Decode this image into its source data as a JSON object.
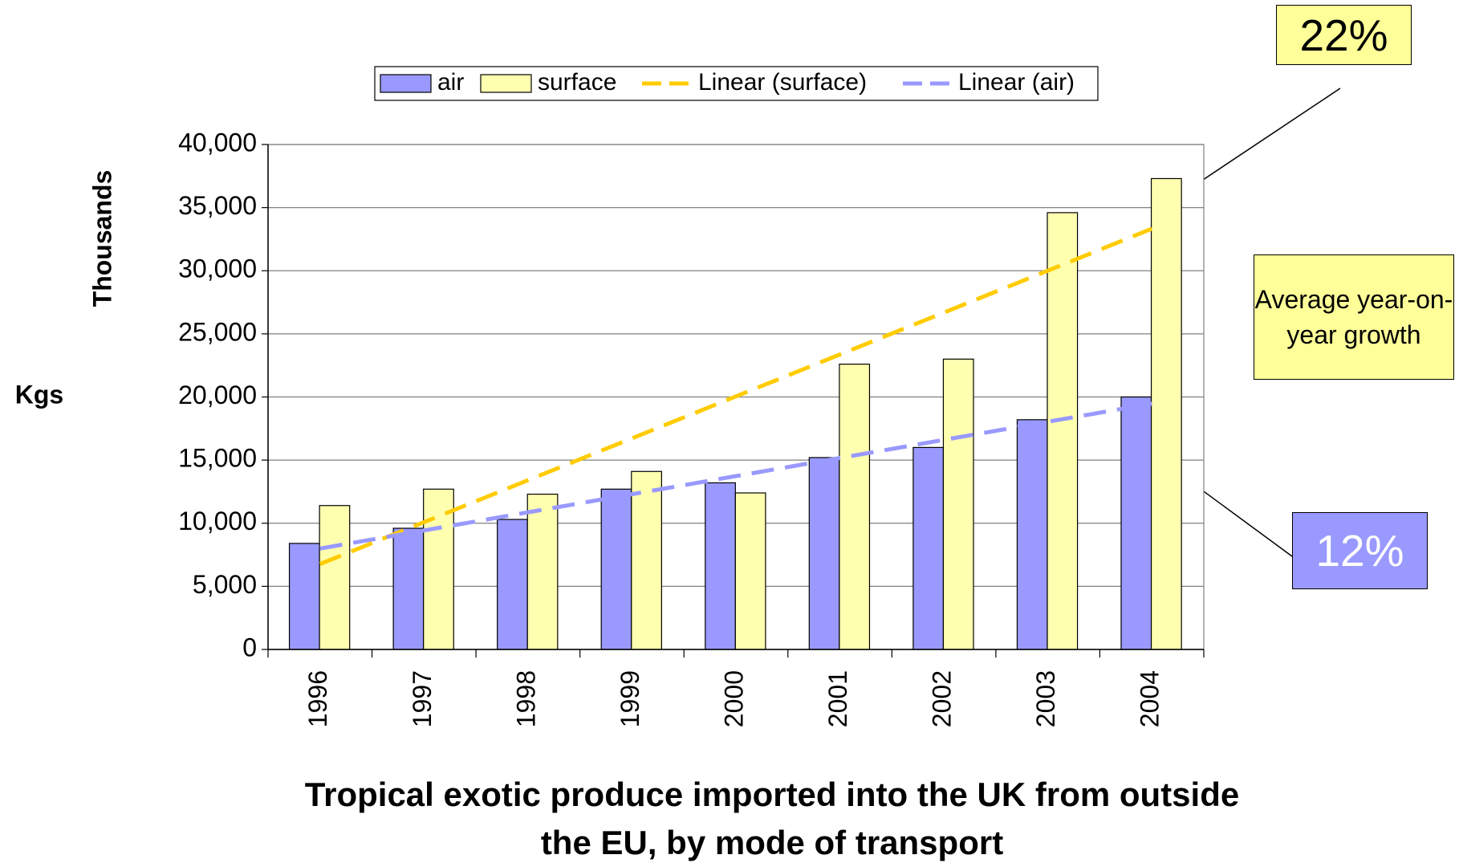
{
  "chart_data": {
    "type": "bar",
    "title": "Tropical exotic produce imported into the UK from outside the EU, by mode of transport",
    "y_label": "Thousands",
    "y_unit_label": "Kgs",
    "categories": [
      "1996",
      "1997",
      "1998",
      "1999",
      "2000",
      "2001",
      "2002",
      "2003",
      "2004"
    ],
    "series": [
      {
        "name": "air",
        "color": "#9999ff",
        "values": [
          8400,
          9600,
          10300,
          12700,
          13200,
          15200,
          16000,
          18200,
          20000
        ]
      },
      {
        "name": "surface",
        "color": "#ffffb0",
        "values": [
          11400,
          12700,
          12300,
          14100,
          12400,
          22600,
          23000,
          34600,
          37300
        ]
      }
    ],
    "trendlines": [
      {
        "name": "Linear (surface)",
        "color": "#ffcc00",
        "series": "surface"
      },
      {
        "name": "Linear (air)",
        "color": "#9999ff",
        "series": "air"
      }
    ],
    "ylim": [
      0,
      40000
    ],
    "yticks": [
      0,
      {
        "value": 5000,
        "label": "5,000"
      },
      {
        "value": 10000,
        "label": "10,000"
      },
      {
        "value": 15000,
        "label": "15,000"
      },
      {
        "value": 20000,
        "label": "20,000"
      },
      {
        "value": 25000,
        "label": "25,000"
      },
      {
        "value": 30000,
        "label": "30,000"
      },
      {
        "value": 35000,
        "label": "35,000"
      },
      {
        "value": 40000,
        "label": "40,000"
      }
    ],
    "grid": true,
    "legend": "top",
    "annotations": [
      {
        "text": "22%",
        "color": "#ffff99"
      },
      {
        "text": "12%",
        "color": "#9999ff"
      },
      {
        "text": "Average year-on-year growth",
        "color": "#ffff99"
      }
    ]
  }
}
